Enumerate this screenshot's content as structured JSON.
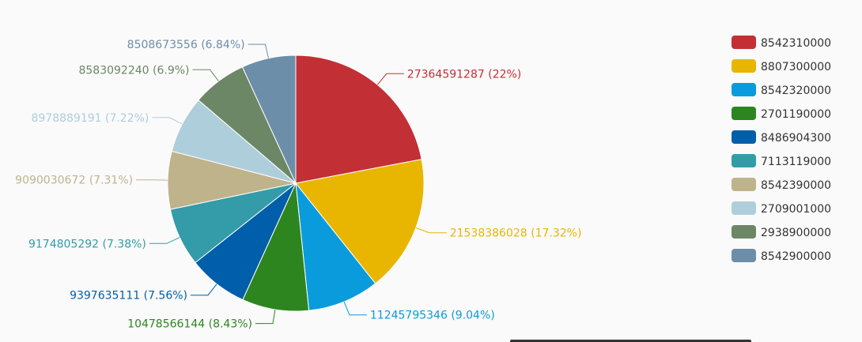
{
  "chart_data": {
    "type": "pie",
    "title": "",
    "legend_position": "top-right",
    "slices": [
      {
        "name": "8542310000",
        "value": 27364591287,
        "label": "27364591287 (22%)",
        "color": "#c23035"
      },
      {
        "name": "8807300000",
        "value": 21538386028,
        "label": "21538386028 (17.32%)",
        "color": "#e8b600"
      },
      {
        "name": "8542320000",
        "value": 11245795346,
        "label": "11245795346 (9.04%)",
        "color": "#0a9bdc"
      },
      {
        "name": "2701190000",
        "value": 10478566144,
        "label": "10478566144 (8.43%)",
        "color": "#2d8520"
      },
      {
        "name": "8486904300",
        "value": 9397635111,
        "label": "9397635111 (7.56%)",
        "color": "#005eaa"
      },
      {
        "name": "7113119000",
        "value": 9174805292,
        "label": "9174805292 (7.38%)",
        "color": "#339ca8"
      },
      {
        "name": "8542390000",
        "value": 9090030672,
        "label": "9090030672 (7.31%)",
        "color": "#bfb38c"
      },
      {
        "name": "2709001000",
        "value": 8978889191,
        "label": "8978889191 (7.22%)",
        "color": "#afcedb"
      },
      {
        "name": "2938900000",
        "value": 8583092240,
        "label": "8583092240 (6.9%)",
        "color": "#6c8766"
      },
      {
        "name": "8542900000",
        "value": 8508673556,
        "label": "8508673556 (6.84%)",
        "color": "#6d8ea9"
      }
    ]
  }
}
